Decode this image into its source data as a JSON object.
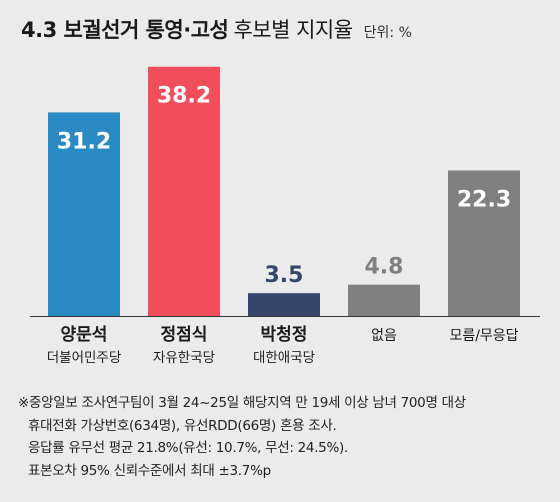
{
  "title": {
    "bold": "4.3 보궐선거 통영·고성",
    "regular": "후보별 지지율",
    "unit": "단위: %"
  },
  "chart_data": {
    "type": "bar",
    "categories": [
      "양문석",
      "정점식",
      "박청정",
      "없음",
      "모름/무응답"
    ],
    "subtitles": [
      "더불어민주당",
      "자유한국당",
      "대한애국당",
      "",
      ""
    ],
    "values": [
      31.2,
      38.2,
      3.5,
      4.8,
      22.3
    ],
    "value_labels": [
      "31.2",
      "38.2",
      "3.5",
      "4.8",
      "22.3"
    ],
    "colors": [
      "#2a8bc4",
      "#ef4e5a",
      "#34476b",
      "#808080",
      "#808080"
    ],
    "label_colors": [
      "#ffffff",
      "#ffffff",
      "#34476b",
      "#808080",
      "#ffffff"
    ],
    "bold_categories": [
      true,
      true,
      true,
      false,
      false
    ],
    "ylim": [
      0,
      40
    ],
    "xlabel": "",
    "ylabel": "",
    "grid": false,
    "legend": "none"
  },
  "note": {
    "lines": [
      "※중앙일보 조사연구팀이 3월 24~25일 해당지역 만 19세 이상 남녀 700명 대상",
      "휴대전화 가상번호(634명), 유선RDD(66명) 혼용 조사.",
      "응답률 유무선 평균 21.8%(유선: 10.7%, 무선: 24.5%).",
      "표본오차 95% 신뢰수준에서 최대 ±3.7%p"
    ]
  }
}
